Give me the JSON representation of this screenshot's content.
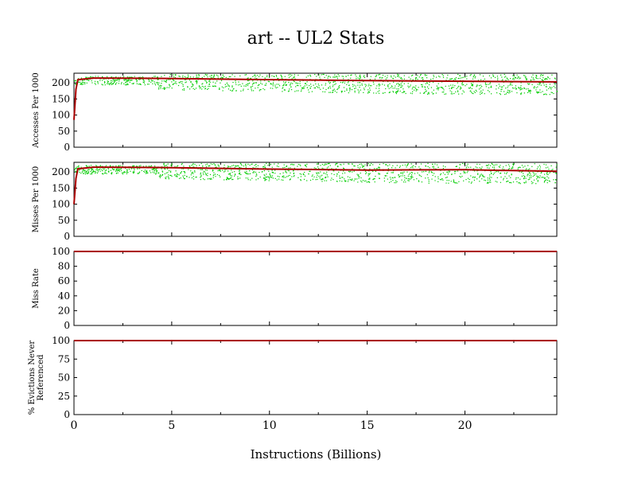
{
  "chart_data": {
    "title": "art -- UL2  Stats",
    "xlabel": "Instructions (Billions)",
    "x_ticks": [
      0,
      5,
      10,
      15,
      20
    ],
    "x_range": [
      0,
      24.7
    ],
    "colors": {
      "scatter": "#00cc00",
      "line": "#aa0000"
    },
    "panels": [
      {
        "type": "scatter",
        "ylabel": "Accesses Per 1000",
        "ylim": [
          0,
          230
        ],
        "y_ticks": [
          0,
          50,
          100,
          150,
          200
        ],
        "trend": {
          "x": [
            0,
            0.1,
            0.2,
            1,
            4.3,
            10,
            15,
            20,
            24.7
          ],
          "y": [
            85,
            180,
            210,
            215,
            214,
            210,
            207,
            205,
            203
          ]
        }
      },
      {
        "type": "scatter",
        "ylabel": "Misses Per 1000",
        "ylim": [
          0,
          230
        ],
        "y_ticks": [
          0,
          50,
          100,
          150,
          200
        ],
        "trend": {
          "x": [
            0,
            0.1,
            0.2,
            1,
            4.3,
            10,
            15,
            20,
            24.7
          ],
          "y": [
            100,
            180,
            210,
            215,
            214,
            209,
            206,
            207,
            202
          ]
        }
      },
      {
        "type": "line",
        "ylabel": "Miss Rate",
        "ylim": [
          0,
          100
        ],
        "y_ticks": [
          0,
          20,
          40,
          60,
          80,
          100
        ],
        "trend": {
          "x": [
            0,
            24.7
          ],
          "y": [
            100,
            100
          ]
        }
      },
      {
        "type": "line",
        "ylabel": "% Evictions Never Referenced",
        "ylabel_lines": [
          "% Evictions Never",
          "Referenced"
        ],
        "ylim": [
          0,
          100
        ],
        "y_ticks": [
          0,
          25,
          50,
          75,
          100
        ],
        "trend": {
          "x": [
            0,
            24.7
          ],
          "y": [
            100,
            100
          ]
        }
      }
    ]
  }
}
